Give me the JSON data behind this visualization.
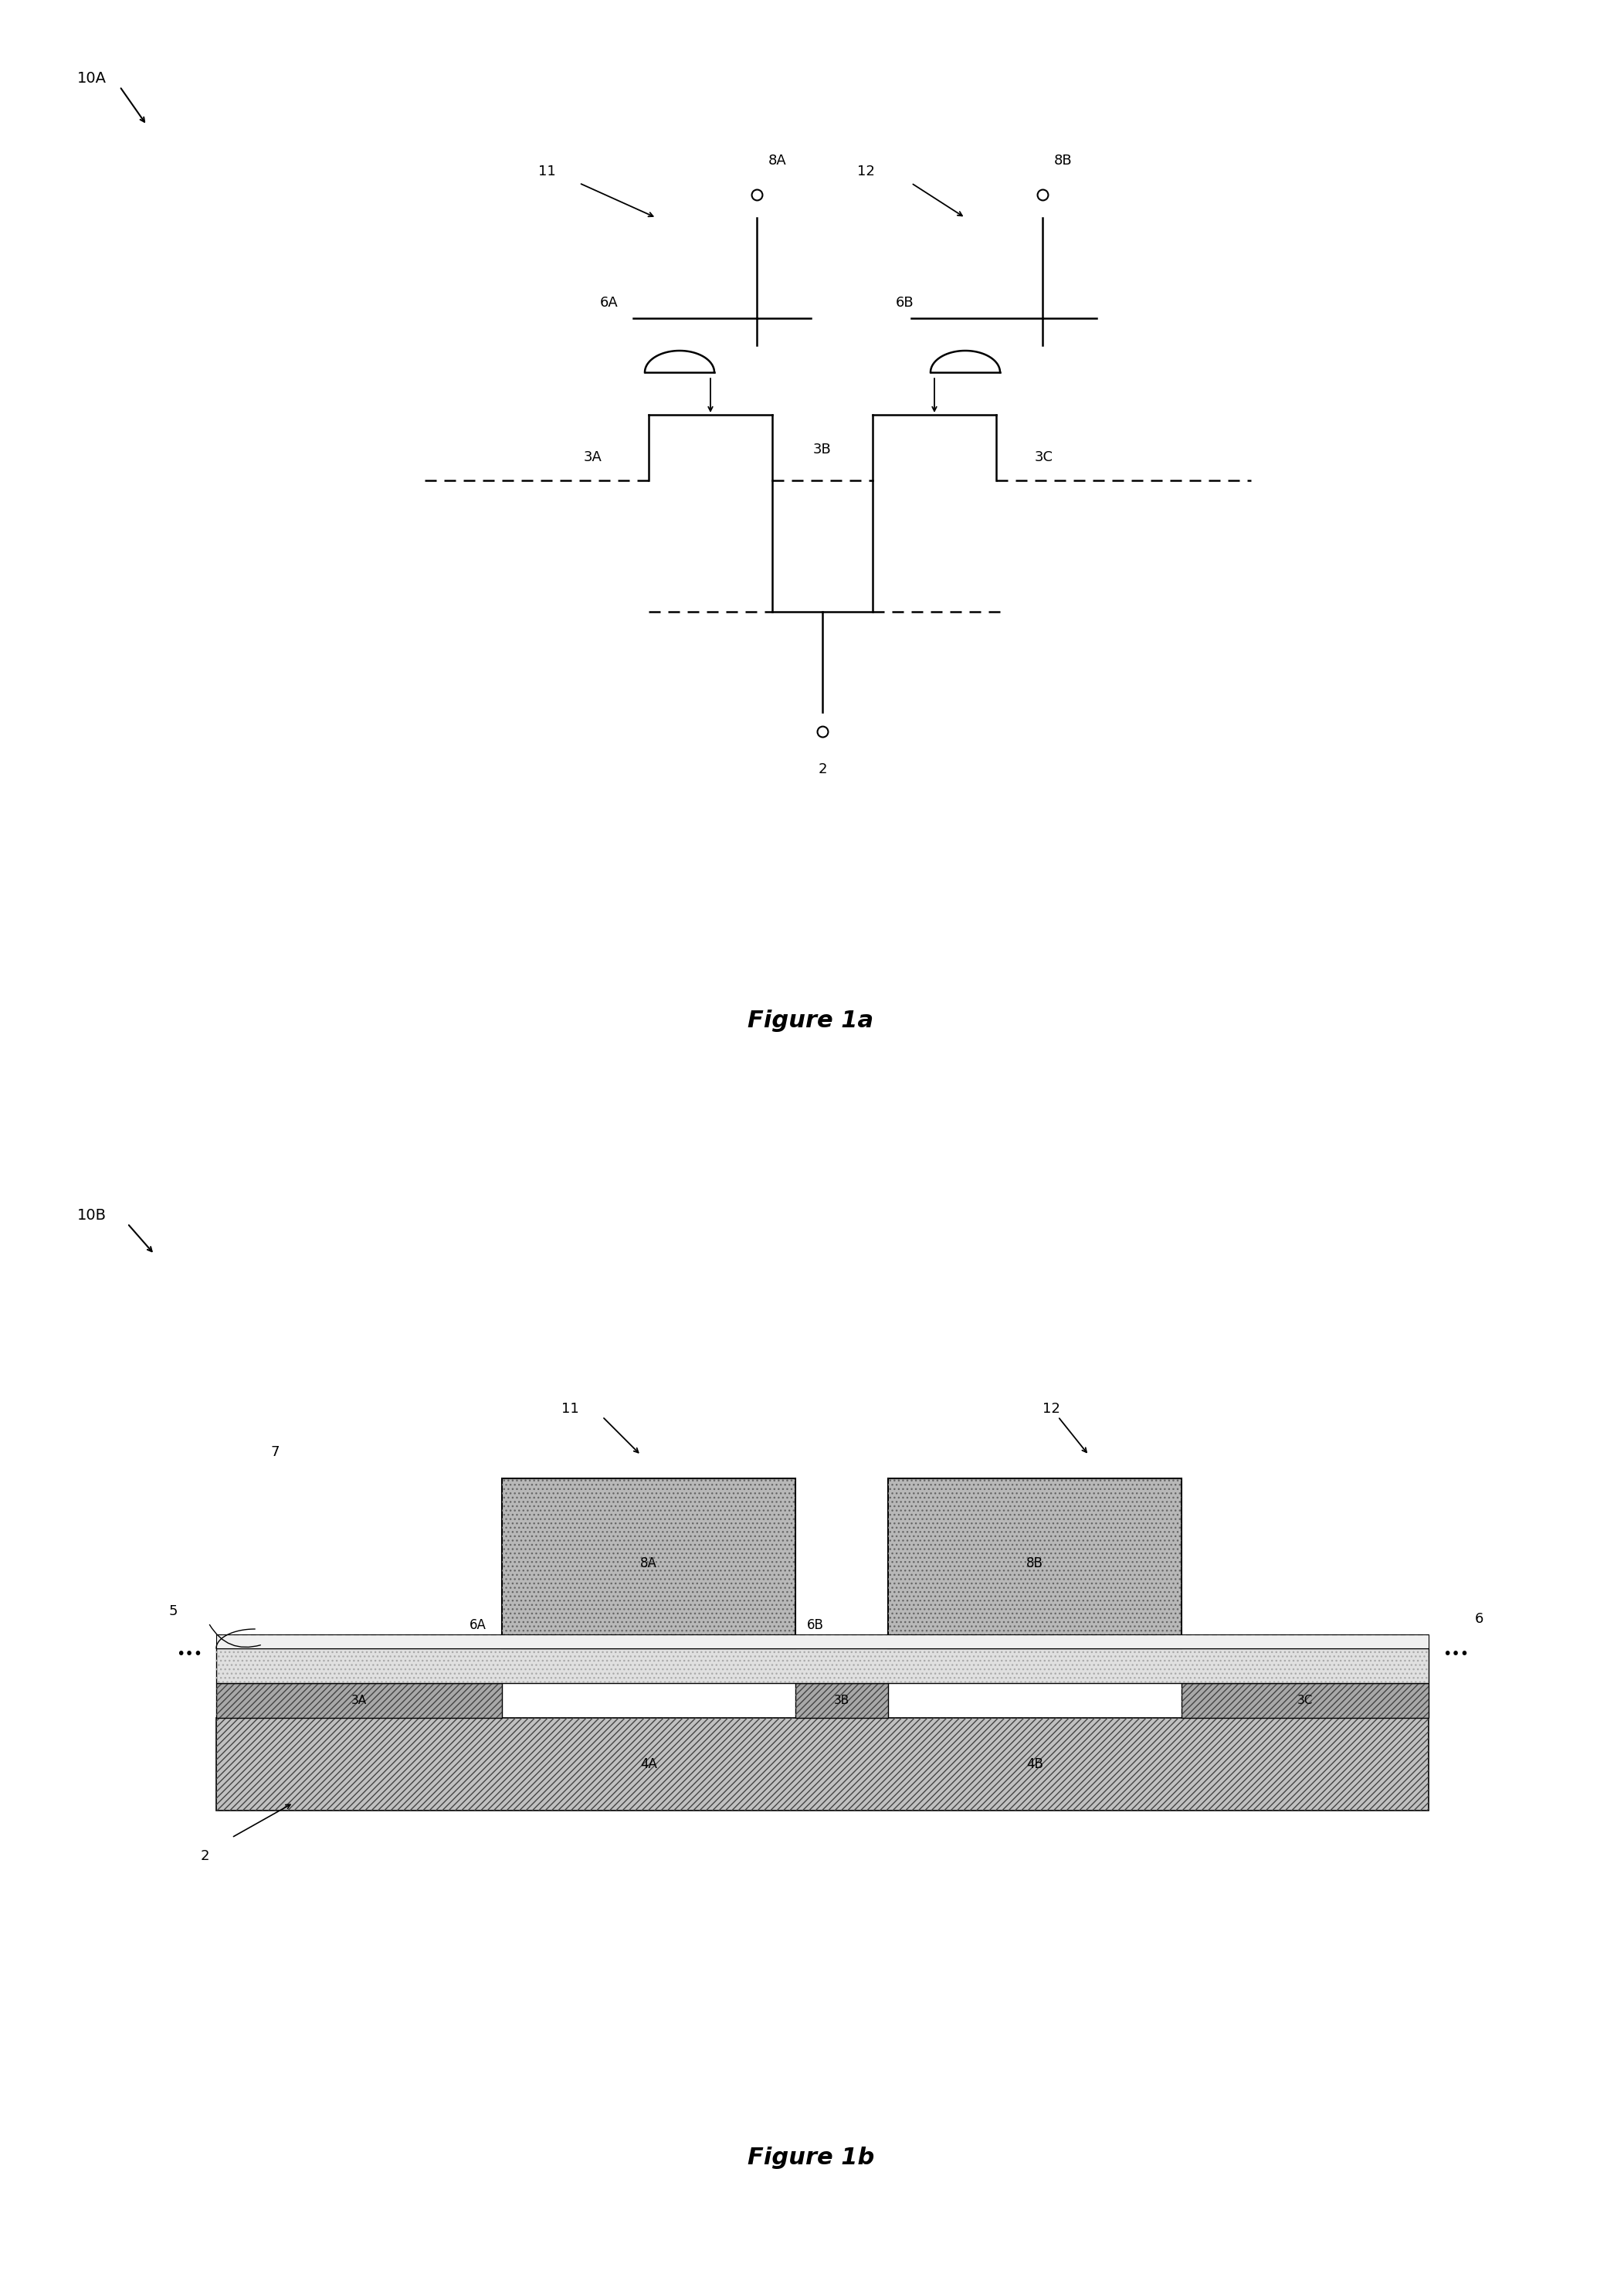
{
  "fig1a_label": "10A",
  "fig1b_label": "10B",
  "fig_caption_1a": "Figure 1a",
  "fig_caption_1b": "Figure 1b",
  "background_color": "#ffffff",
  "line_color": "#000000",
  "gray_gate": "#b0b0b0",
  "gray_layer": "#c8c8c8",
  "gray_sub": "#a8a8a8",
  "gray_fin": "#909090",
  "white": "#ffffff"
}
